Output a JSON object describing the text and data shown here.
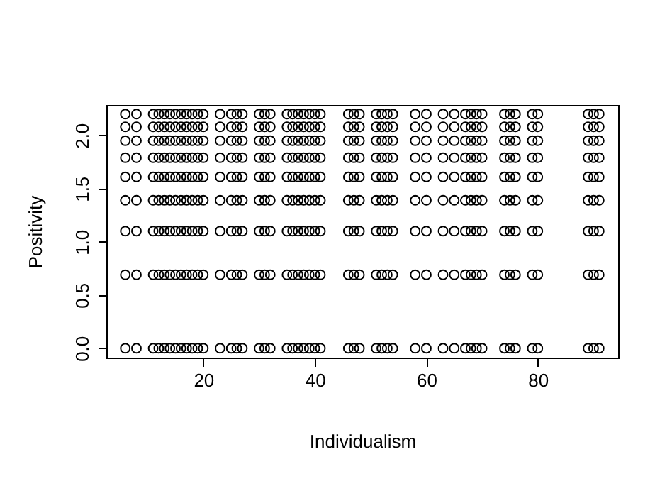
{
  "chart_data": {
    "type": "scatter",
    "xlabel": "Individualism",
    "ylabel": "Positivity",
    "marker": "circle",
    "grid": false,
    "xlim": [
      2.6,
      94.4
    ],
    "xticks": [
      20,
      40,
      60,
      80
    ],
    "ylim": [
      -0.088,
      2.285
    ],
    "yticks": [
      {
        "value": 0,
        "label": "0.0"
      },
      0.5,
      {
        "value": 1,
        "label": "1.0"
      },
      1.5,
      {
        "value": 2,
        "label": "2.0"
      }
    ],
    "series": [
      {
        "color": "#000000",
        "x": [
          6,
          8,
          11,
          12,
          13,
          14,
          15,
          16,
          17,
          18,
          19,
          20,
          23,
          25,
          26,
          27,
          30,
          31,
          32,
          35,
          36,
          37,
          38,
          39,
          40,
          41,
          46,
          47,
          48,
          51,
          52,
          53,
          54,
          58,
          60,
          63,
          65,
          67,
          68,
          69,
          70,
          74,
          75,
          76,
          79,
          80,
          89,
          90,
          91
        ],
        "values": [
          0,
          0,
          0,
          0,
          0,
          0,
          0,
          0,
          0,
          0,
          0,
          0,
          0,
          0,
          0,
          0,
          0,
          0,
          0,
          0,
          0,
          0,
          0,
          0,
          0,
          0,
          0,
          0,
          0,
          0,
          0,
          0,
          0,
          0,
          0,
          0,
          0,
          0,
          0,
          0,
          0,
          0,
          0,
          0,
          0,
          0,
          0,
          0,
          0
        ]
      },
      {
        "color": "#000000",
        "x": [
          6,
          8,
          11,
          12,
          13,
          14,
          15,
          16,
          17,
          18,
          19,
          20,
          23,
          25,
          26,
          27,
          30,
          31,
          32,
          35,
          36,
          37,
          38,
          39,
          40,
          41,
          46,
          47,
          48,
          51,
          52,
          53,
          54,
          58,
          60,
          63,
          65,
          67,
          68,
          69,
          70,
          74,
          75,
          76,
          79,
          80,
          89,
          90,
          91
        ],
        "values": [
          0.69,
          0.69,
          0.69,
          0.69,
          0.69,
          0.69,
          0.69,
          0.69,
          0.69,
          0.69,
          0.69,
          0.69,
          0.69,
          0.69,
          0.69,
          0.69,
          0.69,
          0.69,
          0.69,
          0.69,
          0.69,
          0.69,
          0.69,
          0.69,
          0.69,
          0.69,
          0.69,
          0.69,
          0.69,
          0.69,
          0.69,
          0.69,
          0.69,
          0.69,
          0.69,
          0.69,
          0.69,
          0.69,
          0.69,
          0.69,
          0.69,
          0.69,
          0.69,
          0.69,
          0.69,
          0.69,
          0.69,
          0.69,
          0.69
        ]
      },
      {
        "color": "#000000",
        "x": [
          6,
          8,
          11,
          12,
          13,
          14,
          15,
          16,
          17,
          18,
          19,
          20,
          23,
          25,
          26,
          27,
          30,
          31,
          32,
          35,
          36,
          37,
          38,
          39,
          40,
          41,
          46,
          47,
          48,
          51,
          52,
          53,
          54,
          58,
          60,
          63,
          65,
          67,
          68,
          69,
          70,
          74,
          75,
          76,
          79,
          80,
          89,
          90,
          91
        ],
        "values": [
          1.1,
          1.1,
          1.1,
          1.1,
          1.1,
          1.1,
          1.1,
          1.1,
          1.1,
          1.1,
          1.1,
          1.1,
          1.1,
          1.1,
          1.1,
          1.1,
          1.1,
          1.1,
          1.1,
          1.1,
          1.1,
          1.1,
          1.1,
          1.1,
          1.1,
          1.1,
          1.1,
          1.1,
          1.1,
          1.1,
          1.1,
          1.1,
          1.1,
          1.1,
          1.1,
          1.1,
          1.1,
          1.1,
          1.1,
          1.1,
          1.1,
          1.1,
          1.1,
          1.1,
          1.1,
          1.1,
          1.1,
          1.1,
          1.1
        ]
      },
      {
        "color": "#000000",
        "x": [
          6,
          8,
          11,
          12,
          13,
          14,
          15,
          16,
          17,
          18,
          19,
          20,
          23,
          25,
          26,
          27,
          30,
          31,
          32,
          35,
          36,
          37,
          38,
          39,
          40,
          41,
          46,
          47,
          48,
          51,
          52,
          53,
          54,
          58,
          60,
          63,
          65,
          67,
          68,
          69,
          70,
          74,
          75,
          76,
          79,
          80,
          89,
          90,
          91
        ],
        "values": [
          1.39,
          1.39,
          1.39,
          1.39,
          1.39,
          1.39,
          1.39,
          1.39,
          1.39,
          1.39,
          1.39,
          1.39,
          1.39,
          1.39,
          1.39,
          1.39,
          1.39,
          1.39,
          1.39,
          1.39,
          1.39,
          1.39,
          1.39,
          1.39,
          1.39,
          1.39,
          1.39,
          1.39,
          1.39,
          1.39,
          1.39,
          1.39,
          1.39,
          1.39,
          1.39,
          1.39,
          1.39,
          1.39,
          1.39,
          1.39,
          1.39,
          1.39,
          1.39,
          1.39,
          1.39,
          1.39,
          1.39,
          1.39,
          1.39
        ]
      },
      {
        "color": "#000000",
        "x": [
          6,
          8,
          11,
          12,
          13,
          14,
          15,
          16,
          17,
          18,
          19,
          20,
          23,
          25,
          26,
          27,
          30,
          31,
          32,
          35,
          36,
          37,
          38,
          39,
          40,
          41,
          46,
          47,
          48,
          51,
          52,
          53,
          54,
          58,
          60,
          63,
          65,
          67,
          68,
          69,
          70,
          74,
          75,
          76,
          79,
          80,
          89,
          90,
          91
        ],
        "values": [
          1.61,
          1.61,
          1.61,
          1.61,
          1.61,
          1.61,
          1.61,
          1.61,
          1.61,
          1.61,
          1.61,
          1.61,
          1.61,
          1.61,
          1.61,
          1.61,
          1.61,
          1.61,
          1.61,
          1.61,
          1.61,
          1.61,
          1.61,
          1.61,
          1.61,
          1.61,
          1.61,
          1.61,
          1.61,
          1.61,
          1.61,
          1.61,
          1.61,
          1.61,
          1.61,
          1.61,
          1.61,
          1.61,
          1.61,
          1.61,
          1.61,
          1.61,
          1.61,
          1.61,
          1.61,
          1.61,
          1.61,
          1.61,
          1.61
        ]
      },
      {
        "color": "#000000",
        "x": [
          6,
          8,
          11,
          12,
          13,
          14,
          15,
          16,
          17,
          18,
          19,
          20,
          23,
          25,
          26,
          27,
          30,
          31,
          32,
          35,
          36,
          37,
          38,
          39,
          40,
          41,
          46,
          47,
          48,
          51,
          52,
          53,
          54,
          58,
          60,
          63,
          65,
          67,
          68,
          69,
          70,
          74,
          75,
          76,
          79,
          80,
          89,
          90,
          91
        ],
        "values": [
          1.79,
          1.79,
          1.79,
          1.79,
          1.79,
          1.79,
          1.79,
          1.79,
          1.79,
          1.79,
          1.79,
          1.79,
          1.79,
          1.79,
          1.79,
          1.79,
          1.79,
          1.79,
          1.79,
          1.79,
          1.79,
          1.79,
          1.79,
          1.79,
          1.79,
          1.79,
          1.79,
          1.79,
          1.79,
          1.79,
          1.79,
          1.79,
          1.79,
          1.79,
          1.79,
          1.79,
          1.79,
          1.79,
          1.79,
          1.79,
          1.79,
          1.79,
          1.79,
          1.79,
          1.79,
          1.79,
          1.79,
          1.79,
          1.79
        ]
      },
      {
        "color": "#000000",
        "x": [
          6,
          8,
          11,
          12,
          13,
          14,
          15,
          16,
          17,
          18,
          19,
          20,
          23,
          25,
          26,
          27,
          30,
          31,
          32,
          35,
          36,
          37,
          38,
          39,
          40,
          41,
          46,
          47,
          48,
          51,
          52,
          53,
          54,
          58,
          60,
          63,
          65,
          67,
          68,
          69,
          70,
          74,
          75,
          76,
          79,
          80,
          89,
          90,
          91
        ],
        "values": [
          1.95,
          1.95,
          1.95,
          1.95,
          1.95,
          1.95,
          1.95,
          1.95,
          1.95,
          1.95,
          1.95,
          1.95,
          1.95,
          1.95,
          1.95,
          1.95,
          1.95,
          1.95,
          1.95,
          1.95,
          1.95,
          1.95,
          1.95,
          1.95,
          1.95,
          1.95,
          1.95,
          1.95,
          1.95,
          1.95,
          1.95,
          1.95,
          1.95,
          1.95,
          1.95,
          1.95,
          1.95,
          1.95,
          1.95,
          1.95,
          1.95,
          1.95,
          1.95,
          1.95,
          1.95,
          1.95,
          1.95,
          1.95,
          1.95
        ]
      },
      {
        "color": "#000000",
        "x": [
          6,
          8,
          11,
          12,
          13,
          14,
          15,
          16,
          17,
          18,
          19,
          20,
          23,
          25,
          26,
          27,
          30,
          31,
          32,
          35,
          36,
          37,
          38,
          39,
          40,
          41,
          46,
          47,
          48,
          51,
          52,
          53,
          54,
          58,
          60,
          63,
          65,
          67,
          68,
          69,
          70,
          74,
          75,
          76,
          79,
          80,
          89,
          90,
          91
        ],
        "values": [
          2.08,
          2.08,
          2.08,
          2.08,
          2.08,
          2.08,
          2.08,
          2.08,
          2.08,
          2.08,
          2.08,
          2.08,
          2.08,
          2.08,
          2.08,
          2.08,
          2.08,
          2.08,
          2.08,
          2.08,
          2.08,
          2.08,
          2.08,
          2.08,
          2.08,
          2.08,
          2.08,
          2.08,
          2.08,
          2.08,
          2.08,
          2.08,
          2.08,
          2.08,
          2.08,
          2.08,
          2.08,
          2.08,
          2.08,
          2.08,
          2.08,
          2.08,
          2.08,
          2.08,
          2.08,
          2.08,
          2.08,
          2.08,
          2.08
        ]
      },
      {
        "color": "#000000",
        "x": [
          6,
          8,
          11,
          12,
          13,
          14,
          15,
          16,
          17,
          18,
          19,
          20,
          23,
          25,
          26,
          27,
          30,
          31,
          32,
          35,
          36,
          37,
          38,
          39,
          40,
          41,
          46,
          47,
          48,
          51,
          52,
          53,
          54,
          58,
          60,
          63,
          65,
          67,
          68,
          69,
          70,
          74,
          75,
          76,
          79,
          80,
          89,
          90,
          91
        ],
        "values": [
          2.2,
          2.2,
          2.2,
          2.2,
          2.2,
          2.2,
          2.2,
          2.2,
          2.2,
          2.2,
          2.2,
          2.2,
          2.2,
          2.2,
          2.2,
          2.2,
          2.2,
          2.2,
          2.2,
          2.2,
          2.2,
          2.2,
          2.2,
          2.2,
          2.2,
          2.2,
          2.2,
          2.2,
          2.2,
          2.2,
          2.2,
          2.2,
          2.2,
          2.2,
          2.2,
          2.2,
          2.2,
          2.2,
          2.2,
          2.2,
          2.2,
          2.2,
          2.2,
          2.2,
          2.2,
          2.2,
          2.2,
          2.2,
          2.2
        ]
      }
    ]
  }
}
